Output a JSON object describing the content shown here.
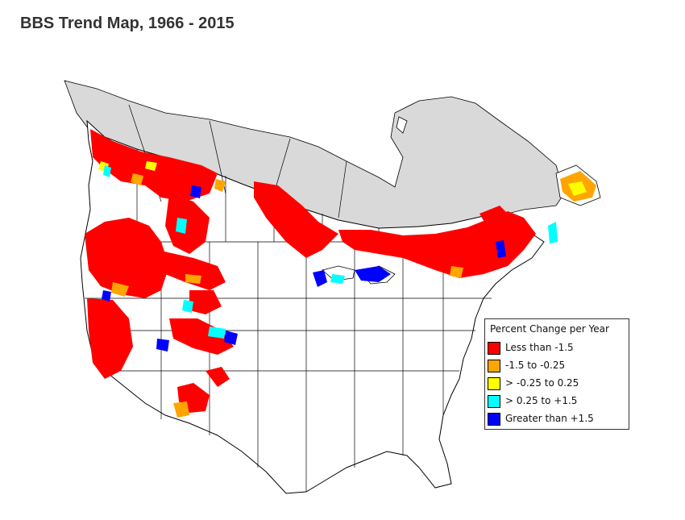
{
  "title": "BBS Trend Map, 1966 - 2015",
  "legend": {
    "title": "Percent Change per Year",
    "items": [
      {
        "label": "Less than -1.5",
        "color": "#ff0000"
      },
      {
        "label": "-1.5 to -0.25",
        "color": "#ffa500"
      },
      {
        "label": "> -0.25 to 0.25",
        "color": "#ffff00"
      },
      {
        "label": "> 0.25 to +1.5",
        "color": "#00ffff"
      },
      {
        "label": "Greater than +1.5",
        "color": "#0000ff"
      }
    ]
  },
  "colors": {
    "no_data_region": "#d9d9d9",
    "land": "#ffffff",
    "borders": "#000000"
  }
}
